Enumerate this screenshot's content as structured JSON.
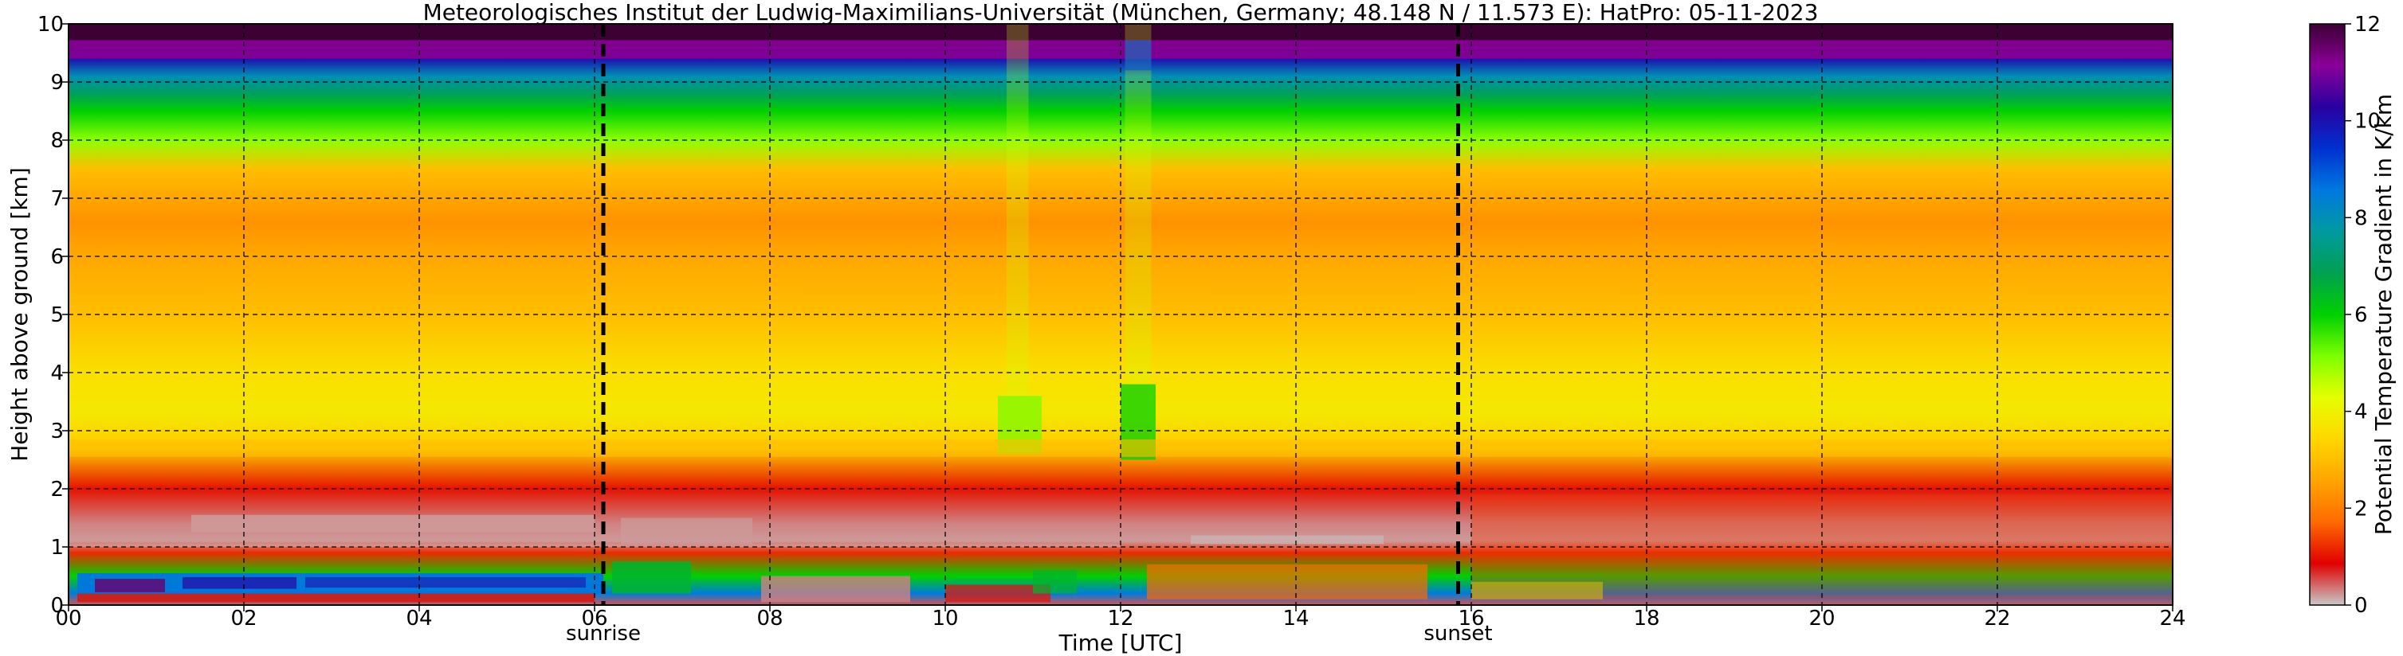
{
  "chart_data": {
    "type": "heatmap",
    "title": "Meteorologisches Institut der Ludwig-Maximilians-Universität (München, Germany; 48.148 N / 11.573 E):    HatPro: 05-11-2023",
    "xlabel": "Time [UTC]",
    "ylabel": "Height above ground [km]",
    "xlim": [
      0,
      24
    ],
    "ylim": [
      0,
      10
    ],
    "x_ticks": [
      "00",
      "02",
      "04",
      "06",
      "08",
      "10",
      "12",
      "14",
      "16",
      "18",
      "20",
      "22",
      "24"
    ],
    "y_ticks": [
      "0",
      "1",
      "2",
      "3",
      "4",
      "5",
      "6",
      "7",
      "8",
      "9",
      "10"
    ],
    "grid": true,
    "colorbar": {
      "label": "Potential Temperature Gradient in K/km",
      "range": [
        0,
        12
      ],
      "ticks": [
        "0",
        "2",
        "4",
        "6",
        "8",
        "10",
        "12"
      ],
      "colors": [
        "#c8c8c8",
        "#e00000",
        "#ff6a00",
        "#ffa500",
        "#ffd700",
        "#e6ff00",
        "#7cff00",
        "#00d000",
        "#00a050",
        "#009aa0",
        "#0078e0",
        "#0030d0",
        "#2a00a0",
        "#8a0099",
        "#3c0033"
      ]
    },
    "annotations": [
      {
        "text": "sunrise",
        "x": 6.1
      },
      {
        "text": "sunset",
        "x": 15.85
      }
    ],
    "profile_heights_km": [
      0,
      0.2,
      0.5,
      0.9,
      1.1,
      1.4,
      2.0,
      2.7,
      3.3,
      4.0,
      5.0,
      6.0,
      6.6,
      7.5,
      8.0,
      8.5,
      8.8,
      9.1,
      9.4,
      9.7,
      10.0
    ],
    "typical_profile_K_per_km": [
      0.5,
      8.5,
      6.0,
      1.2,
      0.2,
      0.3,
      1.0,
      3.2,
      3.8,
      3.6,
      3.0,
      2.6,
      2.3,
      3.0,
      5.0,
      6.0,
      7.0,
      8.0,
      10.0,
      11.5,
      12.0
    ]
  }
}
